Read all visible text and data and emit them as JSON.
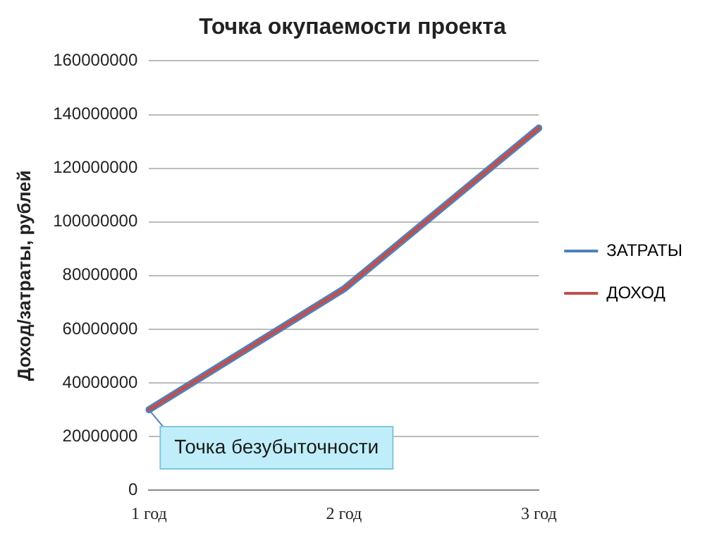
{
  "chart_data": {
    "type": "line",
    "title": "Точка окупаемости проекта",
    "ylabel": "Доход/затраты, рублей",
    "categories": [
      "1 год",
      "2 год",
      "3 год"
    ],
    "series": [
      {
        "name": "ЗАТРАТЫ",
        "color": "#4f81bd",
        "values": [
          30000000,
          75000000,
          135000000
        ]
      },
      {
        "name": "ДОХОД",
        "color": "#c0504d",
        "values": [
          30000000,
          75000000,
          135000000
        ]
      }
    ],
    "ylim": [
      0,
      160000000
    ],
    "yticks": [
      0,
      20000000,
      40000000,
      60000000,
      80000000,
      100000000,
      120000000,
      140000000,
      160000000
    ],
    "grid": "y",
    "legend": "right",
    "marker": "none",
    "annotations": [
      {
        "text": "Точка безубыточности",
        "x": "1 год",
        "y": 30000000
      }
    ]
  }
}
